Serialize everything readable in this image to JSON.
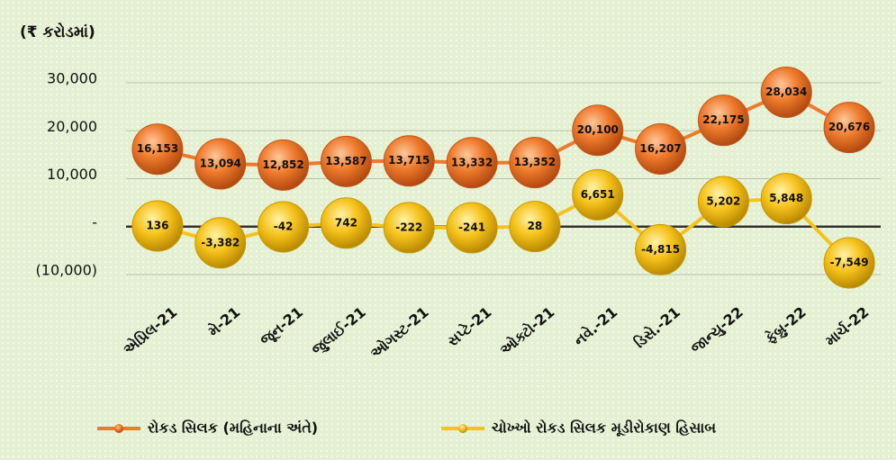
{
  "chart_data": {
    "type": "line",
    "title": "(₹ કરોડમાં)",
    "categories": [
      "એપ્રિલ-21",
      "મે-21",
      "જૂન-21",
      "જુલાઈ-21",
      "ઓગસ્ટ-21",
      "સપ્ટે-21",
      "ઓક્ટો-21",
      "નવે.-21",
      "ડિસે.-21",
      "જાન્યુ-22",
      "ફેબ્રુ-22",
      "માર્ચ-22"
    ],
    "series": [
      {
        "name": "રોકડ સિલક (મહિનાના અંતે)",
        "color": "#ee7a2c",
        "values": [
          16153,
          13094,
          12852,
          13587,
          13715,
          13332,
          13352,
          20100,
          16207,
          22175,
          28034,
          20676
        ],
        "value_labels": [
          "16,153",
          "13,094",
          "12,852",
          "13,587",
          "13,715",
          "13,332",
          "13,352",
          "20,100",
          "16,207",
          "22,175",
          "28,034",
          "20,676"
        ]
      },
      {
        "name": "ચોખ્ખો રોકડ  સિલક મૂડીરોકાણ હિસાબ",
        "color": "#f6c21c",
        "values": [
          136,
          -3382,
          -42,
          742,
          -222,
          -241,
          28,
          6651,
          -4815,
          5202,
          5848,
          -7549
        ],
        "value_labels": [
          "136",
          "-3,382",
          "-42",
          "742",
          "-222",
          "-241",
          "28",
          "6,651",
          "-4,815",
          "5,202",
          "5,848",
          "-7,549"
        ]
      }
    ],
    "ylim": [
      -10000,
      30000
    ],
    "yticks": [
      {
        "value": -10000,
        "label": "(10,000)"
      },
      {
        "value": 0,
        "label": "-"
      },
      {
        "value": 10000,
        "label": "10,000"
      },
      {
        "value": 20000,
        "label": "20,000"
      },
      {
        "value": 30000,
        "label": "30,000"
      }
    ],
    "grid": true,
    "legend": "bottom"
  }
}
